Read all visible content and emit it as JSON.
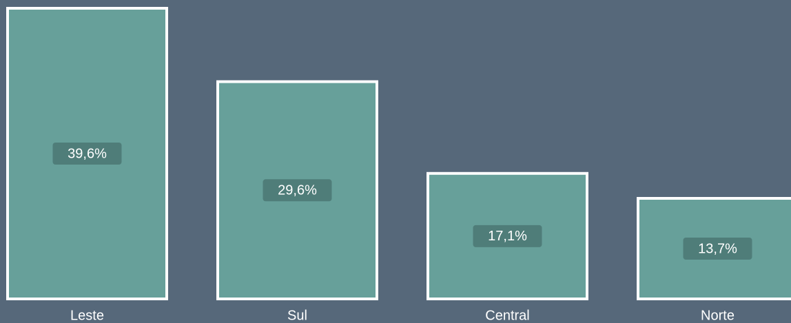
{
  "chart_data": {
    "type": "bar",
    "categories": [
      "Leste",
      "Sul",
      "Central",
      "Norte"
    ],
    "values": [
      39.6,
      29.6,
      17.1,
      13.7
    ],
    "value_labels": [
      "39,6%",
      "29,6%",
      "17,1%",
      "13,7%"
    ],
    "color": "#67a09a"
  }
}
